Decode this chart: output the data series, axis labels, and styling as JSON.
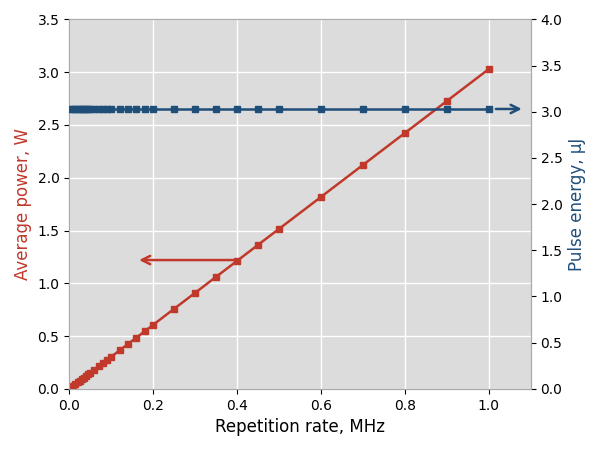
{
  "title": "",
  "xlabel": "Repetition rate, MHz",
  "ylabel_left": "Average power, W",
  "ylabel_right": "Pulse energy, μJ",
  "xlim": [
    0,
    1.1
  ],
  "ylim_left": [
    0,
    3.5
  ],
  "ylim_right": [
    0.0,
    4.0
  ],
  "xticks": [
    0.0,
    0.2,
    0.4,
    0.6,
    0.8,
    1.0
  ],
  "yticks_left": [
    0.0,
    0.5,
    1.0,
    1.5,
    2.0,
    2.5,
    3.0,
    3.5
  ],
  "yticks_right": [
    0.0,
    0.5,
    1.0,
    1.5,
    2.0,
    2.5,
    3.0,
    3.5,
    4.0
  ],
  "power_x": [
    0.005,
    0.01,
    0.015,
    0.02,
    0.025,
    0.03,
    0.035,
    0.04,
    0.045,
    0.05,
    0.06,
    0.07,
    0.08,
    0.09,
    0.1,
    0.12,
    0.14,
    0.16,
    0.18,
    0.2,
    0.25,
    0.3,
    0.35,
    0.4,
    0.45,
    0.5,
    0.6,
    0.7,
    0.8,
    0.9,
    1.0
  ],
  "power_y": [
    0.015,
    0.03,
    0.045,
    0.061,
    0.076,
    0.091,
    0.106,
    0.121,
    0.136,
    0.152,
    0.182,
    0.212,
    0.243,
    0.273,
    0.303,
    0.364,
    0.424,
    0.485,
    0.545,
    0.606,
    0.758,
    0.909,
    1.061,
    1.212,
    1.364,
    1.515,
    1.818,
    2.121,
    2.424,
    2.727,
    3.03
  ],
  "energy_x": [
    0.005,
    0.01,
    0.015,
    0.02,
    0.025,
    0.03,
    0.035,
    0.04,
    0.045,
    0.05,
    0.06,
    0.07,
    0.08,
    0.09,
    0.1,
    0.12,
    0.14,
    0.16,
    0.18,
    0.2,
    0.25,
    0.3,
    0.35,
    0.4,
    0.45,
    0.5,
    0.6,
    0.7,
    0.8,
    0.9,
    1.0
  ],
  "energy_y": [
    3.03,
    3.03,
    3.03,
    3.03,
    3.03,
    3.03,
    3.03,
    3.03,
    3.03,
    3.03,
    3.03,
    3.03,
    3.03,
    3.03,
    3.03,
    3.03,
    3.03,
    3.03,
    3.03,
    3.03,
    3.03,
    3.03,
    3.03,
    3.03,
    3.03,
    3.03,
    3.03,
    3.03,
    3.03,
    3.03,
    3.03
  ],
  "red_color": "#c0392b",
  "blue_color": "#1f4e79",
  "marker_style": "s",
  "marker_size": 4,
  "line_width": 1.8,
  "background_color": "#dcdcdc",
  "grid_color": "white",
  "label_fontsize": 12,
  "tick_fontsize": 10,
  "fig_bg": "white"
}
